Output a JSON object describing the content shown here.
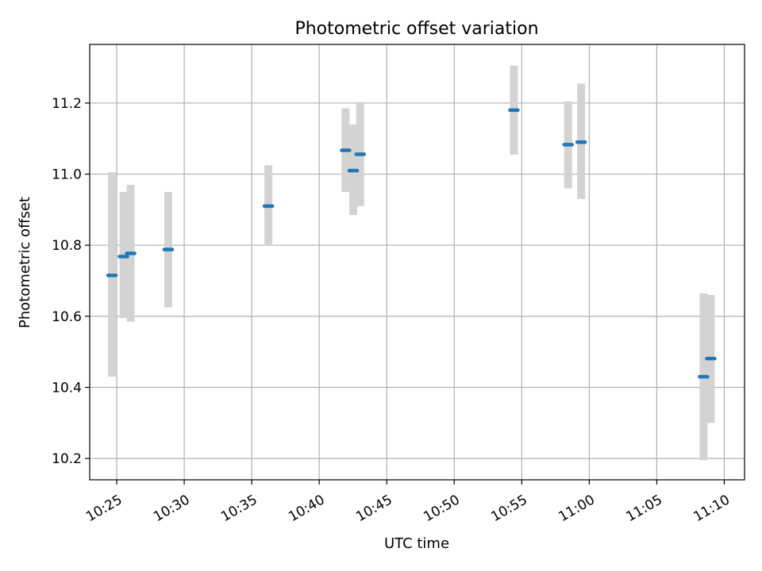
{
  "chart_data": {
    "type": "scatter",
    "title": "Photometric offset variation",
    "xlabel": "UTC time",
    "ylabel": "Photometric offset",
    "xlim": [
      "10:23:00",
      "11:11:30"
    ],
    "ylim": [
      10.14,
      11.365
    ],
    "grid": true,
    "x_ticks": [
      "10:25",
      "10:30",
      "10:35",
      "10:40",
      "10:45",
      "10:50",
      "10:55",
      "11:00",
      "11:05",
      "11:10"
    ],
    "y_ticks": [
      "10.2",
      "10.4",
      "10.6",
      "10.8",
      "11.0",
      "11.2"
    ],
    "colors": {
      "point": "#1f77b4",
      "range_bar": "#d3d3d3",
      "grid": "#b0b0b0"
    },
    "points": [
      {
        "time": "10:24:39",
        "value": 10.715,
        "low": 10.43,
        "high": 11.005
      },
      {
        "time": "10:25:30",
        "value": 10.768,
        "low": 10.595,
        "high": 10.95
      },
      {
        "time": "10:26:02",
        "value": 10.777,
        "low": 10.585,
        "high": 10.97
      },
      {
        "time": "10:28:49",
        "value": 10.788,
        "low": 10.625,
        "high": 10.95
      },
      {
        "time": "10:36:14",
        "value": 10.91,
        "low": 10.8,
        "high": 11.025
      },
      {
        "time": "10:41:57",
        "value": 11.067,
        "low": 10.95,
        "high": 11.185
      },
      {
        "time": "10:42:31",
        "value": 11.01,
        "low": 10.885,
        "high": 11.14
      },
      {
        "time": "10:43:02",
        "value": 11.056,
        "low": 10.91,
        "high": 11.2
      },
      {
        "time": "10:54:25",
        "value": 11.18,
        "low": 11.055,
        "high": 11.305
      },
      {
        "time": "10:58:26",
        "value": 11.083,
        "low": 10.96,
        "high": 11.205
      },
      {
        "time": "10:59:24",
        "value": 11.09,
        "low": 10.93,
        "high": 11.255
      },
      {
        "time": "11:08:28",
        "value": 10.43,
        "low": 10.195,
        "high": 10.665
      },
      {
        "time": "11:09:00",
        "value": 10.481,
        "low": 10.3,
        "high": 10.66
      }
    ]
  }
}
